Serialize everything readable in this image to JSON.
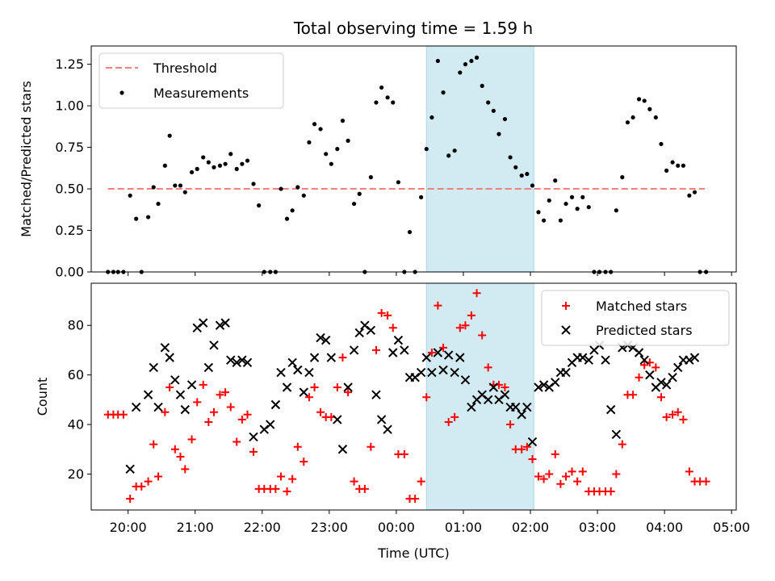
{
  "title": "Total observing time = 1.59 h",
  "colors": {
    "threshold": "#f08080",
    "measurements": "#000000",
    "matched": "#ff0000",
    "predicted": "#000000",
    "highlight": "#add8e6"
  },
  "chart_data": [
    {
      "type": "scatter",
      "ylabel": "Matched/Predicted stars",
      "xlim": [
        19.45,
        29.07
      ],
      "ylim": [
        0,
        1.36
      ],
      "yticks": [
        "0.00",
        "0.25",
        "0.50",
        "0.75",
        "1.00",
        "1.25"
      ],
      "ytick_values": [
        0,
        0.25,
        0.5,
        0.75,
        1.0,
        1.25
      ],
      "legend_position": "top-left",
      "highlight_span": [
        24.45,
        26.05
      ],
      "threshold": {
        "name": "Threshold",
        "value": 0.5,
        "x_range": [
          19.7,
          28.6
        ],
        "style": "dashed"
      },
      "series": [
        {
          "name": "Measurements",
          "marker": "dot",
          "x": [
            19.7,
            19.78,
            19.85,
            19.93,
            20.03,
            20.12,
            20.2,
            20.3,
            20.38,
            20.45,
            20.55,
            20.62,
            20.7,
            20.78,
            20.85,
            20.95,
            21.03,
            21.12,
            21.2,
            21.28,
            21.37,
            21.45,
            21.53,
            21.62,
            21.7,
            21.78,
            21.87,
            21.95,
            22.03,
            22.12,
            22.2,
            22.28,
            22.37,
            22.45,
            22.53,
            22.62,
            22.7,
            22.78,
            22.87,
            22.95,
            23.03,
            23.12,
            23.2,
            23.28,
            23.37,
            23.45,
            23.53,
            23.62,
            23.7,
            23.78,
            23.87,
            23.95,
            24.03,
            24.12,
            24.2,
            24.28,
            24.37,
            24.45,
            24.53,
            24.62,
            24.7,
            24.78,
            24.87,
            24.95,
            25.03,
            25.12,
            25.2,
            25.28,
            25.37,
            25.45,
            25.53,
            25.62,
            25.7,
            25.78,
            25.87,
            25.95,
            26.03,
            26.12,
            26.2,
            26.28,
            26.37,
            26.45,
            26.53,
            26.62,
            26.7,
            26.78,
            26.87,
            26.95,
            27.03,
            27.12,
            27.2,
            27.28,
            27.37,
            27.45,
            27.53,
            27.62,
            27.7,
            27.78,
            27.87,
            27.95,
            28.03,
            28.12,
            28.2,
            28.28,
            28.37,
            28.45,
            28.53,
            28.62
          ],
          "y": [
            0.0,
            0.0,
            0.0,
            0.0,
            0.46,
            0.32,
            0.0,
            0.33,
            0.51,
            0.41,
            0.64,
            0.82,
            0.52,
            0.52,
            0.48,
            0.6,
            0.62,
            0.69,
            0.66,
            0.63,
            0.64,
            0.65,
            0.71,
            0.62,
            0.65,
            0.67,
            0.53,
            0.4,
            0.0,
            0.0,
            0.0,
            0.5,
            0.32,
            0.37,
            0.51,
            0.46,
            0.78,
            0.89,
            0.86,
            0.71,
            0.65,
            0.74,
            0.91,
            0.79,
            0.41,
            0.47,
            0.0,
            0.57,
            1.02,
            1.11,
            1.05,
            1.02,
            0.54,
            0.0,
            0.24,
            0.0,
            0.45,
            0.74,
            0.93,
            1.27,
            1.08,
            0.7,
            0.73,
            1.2,
            1.25,
            1.27,
            1.29,
            1.12,
            1.02,
            0.97,
            0.83,
            0.92,
            0.69,
            0.63,
            0.58,
            0.59,
            0.52,
            0.36,
            0.31,
            0.43,
            0.55,
            0.31,
            0.41,
            0.45,
            0.38,
            0.45,
            0.39,
            0.0,
            0.0,
            0.0,
            0.0,
            0.37,
            0.57,
            0.9,
            0.93,
            1.04,
            1.03,
            0.98,
            0.93,
            0.77,
            0.61,
            0.66,
            0.64,
            0.64,
            0.46,
            0.48,
            0.0,
            0.0
          ]
        }
      ]
    },
    {
      "type": "scatter",
      "xlabel": "Time (UTC)",
      "ylabel": "Count",
      "xlim": [
        19.45,
        29.07
      ],
      "ylim": [
        5.5,
        97
      ],
      "xticks": [
        "20:00",
        "21:00",
        "22:00",
        "23:00",
        "00:00",
        "01:00",
        "02:00",
        "03:00",
        "04:00",
        "05:00"
      ],
      "xtick_values": [
        20,
        21,
        22,
        23,
        24,
        25,
        26,
        27,
        28,
        29
      ],
      "yticks": [
        "20",
        "40",
        "60",
        "80"
      ],
      "ytick_values": [
        20,
        40,
        60,
        80
      ],
      "legend_position": "top-right",
      "highlight_span": [
        24.45,
        26.05
      ],
      "series": [
        {
          "name": "Matched stars",
          "marker": "plus",
          "x": [
            19.7,
            19.78,
            19.85,
            19.93,
            20.03,
            20.12,
            20.2,
            20.3,
            20.38,
            20.45,
            20.55,
            20.62,
            20.7,
            20.78,
            20.85,
            20.95,
            21.03,
            21.12,
            21.2,
            21.28,
            21.37,
            21.45,
            21.53,
            21.62,
            21.7,
            21.78,
            21.87,
            21.95,
            22.03,
            22.12,
            22.2,
            22.28,
            22.37,
            22.45,
            22.53,
            22.62,
            22.7,
            22.78,
            22.87,
            22.95,
            23.03,
            23.12,
            23.2,
            23.28,
            23.37,
            23.45,
            23.53,
            23.62,
            23.7,
            23.78,
            23.87,
            23.95,
            24.03,
            24.12,
            24.2,
            24.28,
            24.37,
            24.45,
            24.53,
            24.62,
            24.7,
            24.78,
            24.87,
            24.95,
            25.03,
            25.12,
            25.2,
            25.28,
            25.37,
            25.45,
            25.53,
            25.62,
            25.7,
            25.78,
            25.87,
            25.95,
            26.03,
            26.12,
            26.2,
            26.28,
            26.37,
            26.45,
            26.53,
            26.62,
            26.7,
            26.78,
            26.87,
            26.95,
            27.03,
            27.12,
            27.2,
            27.28,
            27.37,
            27.45,
            27.53,
            27.62,
            27.7,
            27.78,
            27.87,
            27.95,
            28.03,
            28.12,
            28.2,
            28.28,
            28.37,
            28.45,
            28.53,
            28.62
          ],
          "y": [
            44,
            44,
            44,
            44,
            10,
            15,
            15,
            17,
            32,
            19,
            45,
            55,
            30,
            27,
            22,
            34,
            49,
            56,
            41,
            45,
            52,
            53,
            47,
            33,
            42,
            44,
            29,
            14,
            14,
            14,
            14,
            19,
            13,
            18,
            31,
            25,
            51,
            55,
            45,
            43,
            43,
            55,
            67,
            53,
            17,
            14,
            14,
            31,
            70,
            85,
            84,
            79,
            28,
            28,
            10,
            10,
            17,
            51,
            69,
            88,
            71,
            41,
            43,
            79,
            80,
            84,
            93,
            76,
            63,
            56,
            56,
            55,
            40,
            30,
            30,
            31,
            26,
            19,
            18,
            20,
            28,
            16,
            19,
            21,
            17,
            21,
            13,
            13,
            13,
            13,
            13,
            20,
            32,
            52,
            52,
            59,
            64,
            65,
            63,
            51,
            43,
            44,
            45,
            42,
            21,
            17,
            17,
            17
          ]
        },
        {
          "name": "Predicted stars",
          "marker": "cross",
          "x": [
            20.03,
            20.12,
            20.3,
            20.38,
            20.45,
            20.55,
            20.62,
            20.7,
            20.78,
            20.85,
            20.95,
            21.03,
            21.12,
            21.2,
            21.28,
            21.37,
            21.45,
            21.53,
            21.62,
            21.7,
            21.78,
            21.87,
            22.03,
            22.12,
            22.2,
            22.28,
            22.37,
            22.45,
            22.53,
            22.62,
            22.7,
            22.78,
            22.87,
            22.95,
            23.03,
            23.12,
            23.2,
            23.28,
            23.37,
            23.45,
            23.53,
            23.62,
            23.7,
            23.78,
            23.87,
            23.95,
            24.03,
            24.12,
            24.2,
            24.28,
            24.37,
            24.45,
            24.53,
            24.62,
            24.7,
            24.78,
            24.87,
            24.95,
            25.03,
            25.12,
            25.2,
            25.28,
            25.37,
            25.45,
            25.53,
            25.62,
            25.7,
            25.78,
            25.87,
            25.95,
            26.03,
            26.12,
            26.2,
            26.28,
            26.37,
            26.45,
            26.53,
            26.62,
            26.7,
            26.78,
            26.87,
            26.95,
            27.03,
            27.12,
            27.2,
            27.28,
            27.37,
            27.45,
            27.53,
            27.62,
            27.7,
            27.78,
            27.87,
            27.95,
            28.03,
            28.12,
            28.2,
            28.28,
            28.37,
            28.45
          ],
          "y": [
            22,
            47,
            52,
            63,
            47,
            71,
            67,
            58,
            52,
            46,
            56,
            79,
            81,
            63,
            72,
            80,
            81,
            66,
            65,
            66,
            65,
            35,
            38,
            40,
            48,
            61,
            55,
            65,
            62,
            53,
            61,
            67,
            75,
            74,
            67,
            42,
            30,
            55,
            70,
            77,
            80,
            78,
            52,
            42,
            38,
            69,
            74,
            70,
            59,
            59,
            61,
            67,
            61,
            69,
            62,
            68,
            61,
            67,
            58,
            47,
            50,
            52,
            50,
            55,
            50,
            52,
            47,
            47,
            44,
            47,
            33,
            55,
            56,
            55,
            57,
            61,
            61,
            65,
            67,
            67,
            66,
            70,
            72,
            66,
            46,
            36,
            71,
            72,
            71,
            69,
            66,
            60,
            55,
            57,
            56,
            59,
            63,
            66,
            66,
            67
          ]
        }
      ]
    }
  ]
}
